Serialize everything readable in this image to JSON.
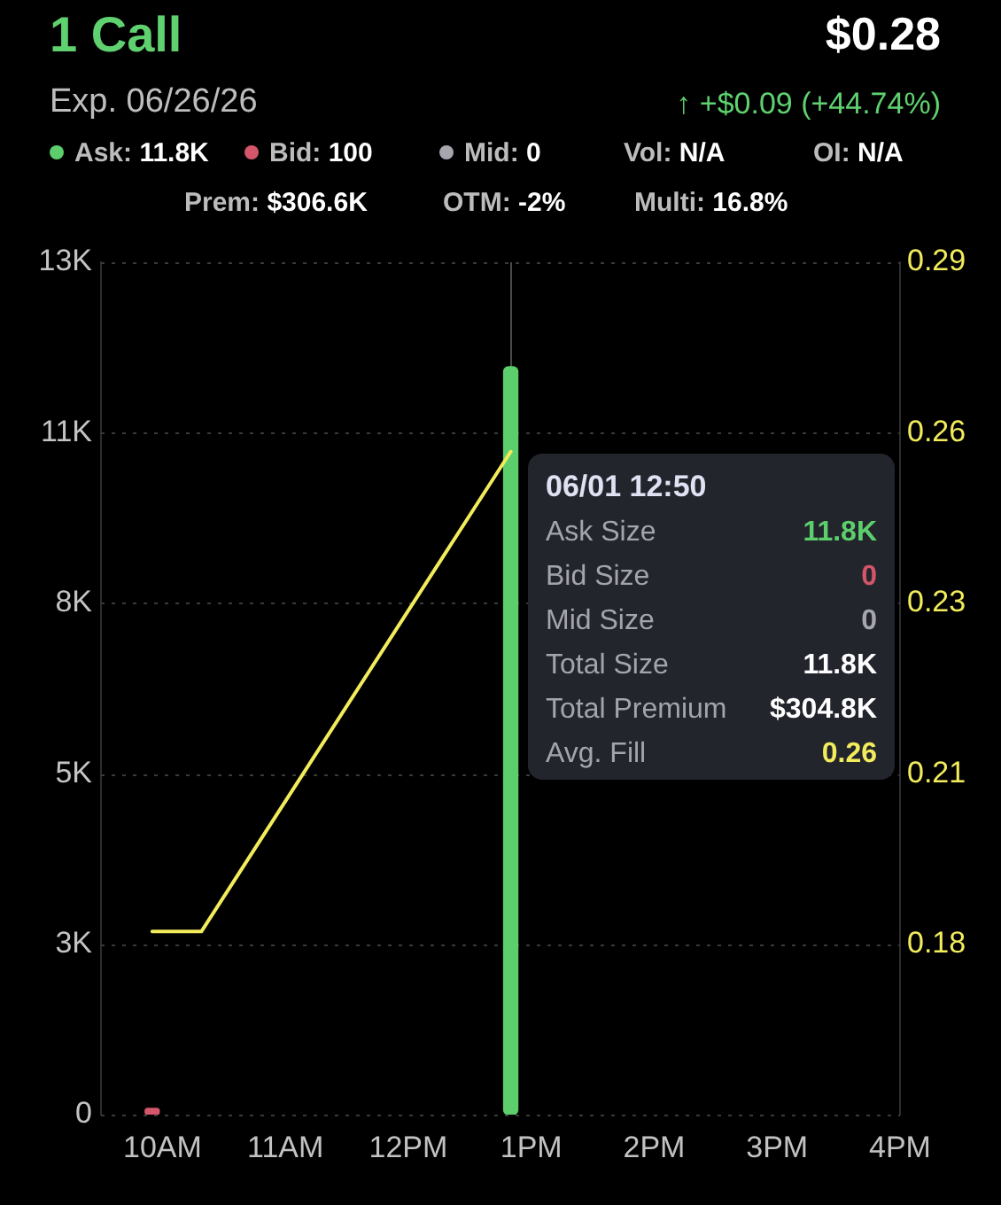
{
  "chart_data": {
    "type": "bar",
    "title": "1 Call",
    "subtitle": "Exp. 06/26/26",
    "annotations": [
      "$0.28",
      "↑ +$0.09 (+44.74%)",
      "Vol: N/A",
      "OI: N/A",
      "Prem: $306.6K",
      "OTM: -2%",
      "Multi: 16.8%",
      "06/01 12:50",
      "Ask Size",
      "11.8K",
      "Bid Size",
      "0",
      "Mid Size",
      "0",
      "Total Size",
      "11.8K",
      "Total Premium",
      "$304.8K",
      "Avg. Fill",
      "0.26"
    ],
    "series": [
      {
        "name": "Ask: 11.8K",
        "color": "#5ccf6c",
        "x": [
          "--06-01T12:50"
        ],
        "values": [
          11800
        ]
      },
      {
        "name": "Bid: 100",
        "color": "#d4566b",
        "x": [
          "--06-01T09:55"
        ],
        "values": [
          100
        ]
      },
      {
        "name": "Mid: 0",
        "color": "#a6a6ae"
      },
      {
        "type": "line",
        "axis": "y2",
        "color": "#f2ec5c",
        "x": [
          "--06-01T09:55",
          "--06-01T10:19",
          "--06-01T12:50"
        ],
        "values": [
          0.181,
          0.181,
          0.257
        ]
      }
    ],
    "xlim": [
      "--06-01T09:30",
      "--06-01T16:00"
    ],
    "xticks": [
      {
        "value": "--06-01T10:00",
        "label": "10AM"
      },
      {
        "value": "--06-01T11:00",
        "label": "11AM"
      },
      {
        "value": "--06-01T12:00",
        "label": "12PM"
      },
      {
        "value": "--06-01T13:00",
        "label": "1PM"
      },
      {
        "value": "--06-01T14:00",
        "label": "2PM"
      },
      {
        "value": "--06-01T15:00",
        "label": "3PM"
      },
      {
        "value": "--06-01T16:00",
        "label": "4PM"
      }
    ],
    "ylim": [
      0,
      13450
    ],
    "yticks": [
      0,
      {
        "value": 2690,
        "label": "3K"
      },
      {
        "value": 5380,
        "label": "5K"
      },
      {
        "value": 8070,
        "label": "8K"
      },
      {
        "value": 10760,
        "label": "11K"
      },
      {
        "value": 13450,
        "label": "13K"
      }
    ],
    "y2lim": [
      0.152,
      0.287
    ],
    "y2ticks": [
      {
        "value": 0.179,
        "label": "0.18"
      },
      {
        "value": 0.206,
        "label": "0.21"
      },
      {
        "value": 0.233,
        "label": "0.23"
      },
      0.26,
      {
        "value": 0.287,
        "label": "0.29"
      }
    ],
    "ref_lines": [
      {
        "axis": "x",
        "value": "--06-01T12:50",
        "color": "#4a4a4a"
      }
    ],
    "grid": "y",
    "legend": "top"
  }
}
